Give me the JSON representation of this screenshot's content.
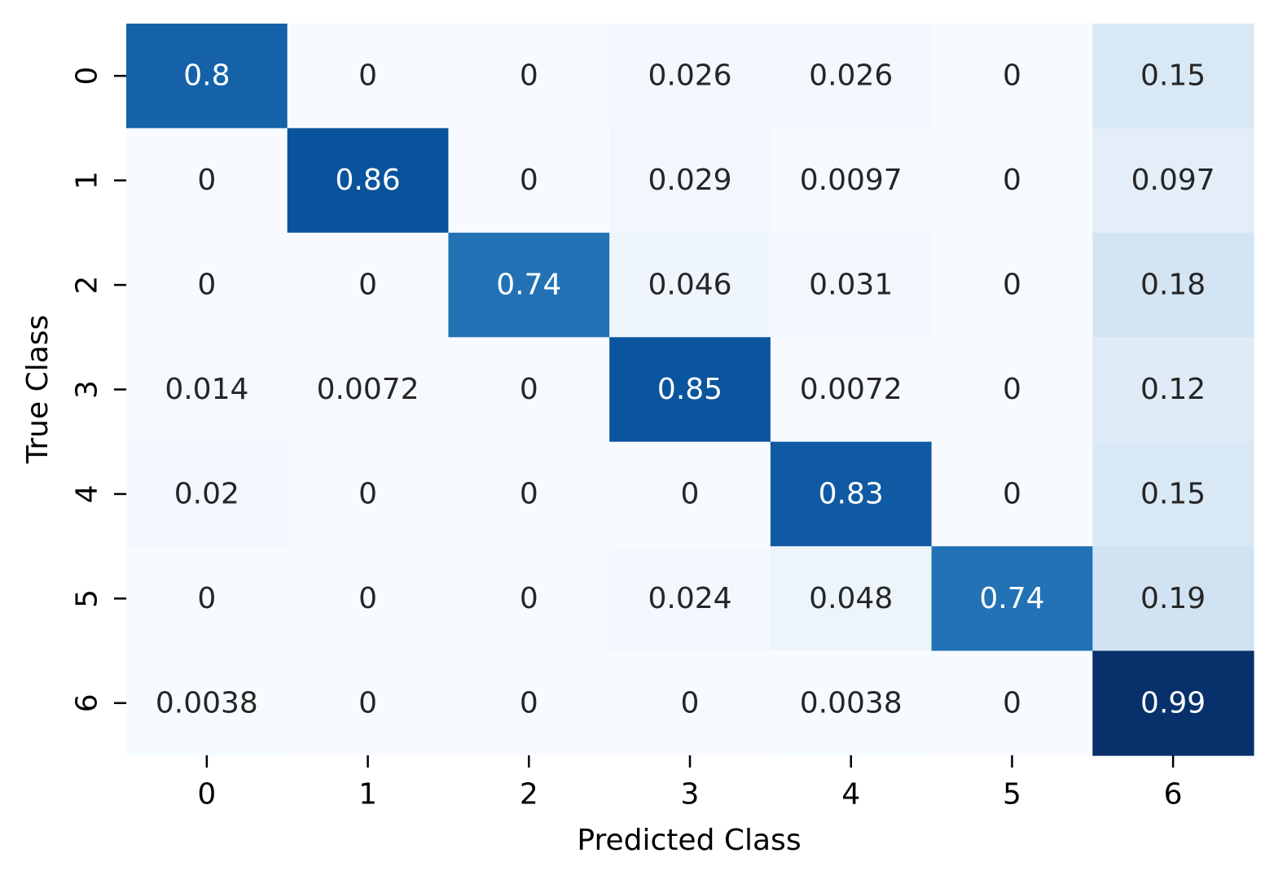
{
  "chart_data": {
    "type": "heatmap",
    "title": "",
    "xlabel": "Predicted Class",
    "ylabel": "True Class",
    "x_categories": [
      "0",
      "1",
      "2",
      "3",
      "4",
      "5",
      "6"
    ],
    "y_categories": [
      "0",
      "1",
      "2",
      "3",
      "4",
      "5",
      "6"
    ],
    "values": [
      [
        0.8,
        0,
        0,
        0.026,
        0.026,
        0,
        0.15
      ],
      [
        0,
        0.86,
        0,
        0.029,
        0.0097,
        0,
        0.097
      ],
      [
        0,
        0,
        0.74,
        0.046,
        0.031,
        0,
        0.18
      ],
      [
        0.014,
        0.0072,
        0,
        0.85,
        0.0072,
        0,
        0.12
      ],
      [
        0.02,
        0,
        0,
        0,
        0.83,
        0,
        0.15
      ],
      [
        0,
        0,
        0,
        0.024,
        0.048,
        0.74,
        0.19
      ],
      [
        0.0038,
        0,
        0,
        0,
        0.0038,
        0,
        0.99
      ]
    ],
    "value_labels": [
      [
        "0.8",
        "0",
        "0",
        "0.026",
        "0.026",
        "0",
        "0.15"
      ],
      [
        "0",
        "0.86",
        "0",
        "0.029",
        "0.0097",
        "0",
        "0.097"
      ],
      [
        "0",
        "0",
        "0.74",
        "0.046",
        "0.031",
        "0",
        "0.18"
      ],
      [
        "0.014",
        "0.0072",
        "0",
        "0.85",
        "0.0072",
        "0",
        "0.12"
      ],
      [
        "0.02",
        "0",
        "0",
        "0",
        "0.83",
        "0",
        "0.15"
      ],
      [
        "0",
        "0",
        "0",
        "0.024",
        "0.048",
        "0.74",
        "0.19"
      ],
      [
        "0.0038",
        "0",
        "0",
        "0",
        "0.0038",
        "0",
        "0.99"
      ]
    ],
    "colormap": "Blues",
    "color_range": [
      0,
      0.99
    ],
    "colorbar": false,
    "grid": false,
    "colors": {
      "low": "#f7fbff",
      "high": "#08306b",
      "text_light": "#ffffff",
      "text_dark": "#262626"
    }
  }
}
